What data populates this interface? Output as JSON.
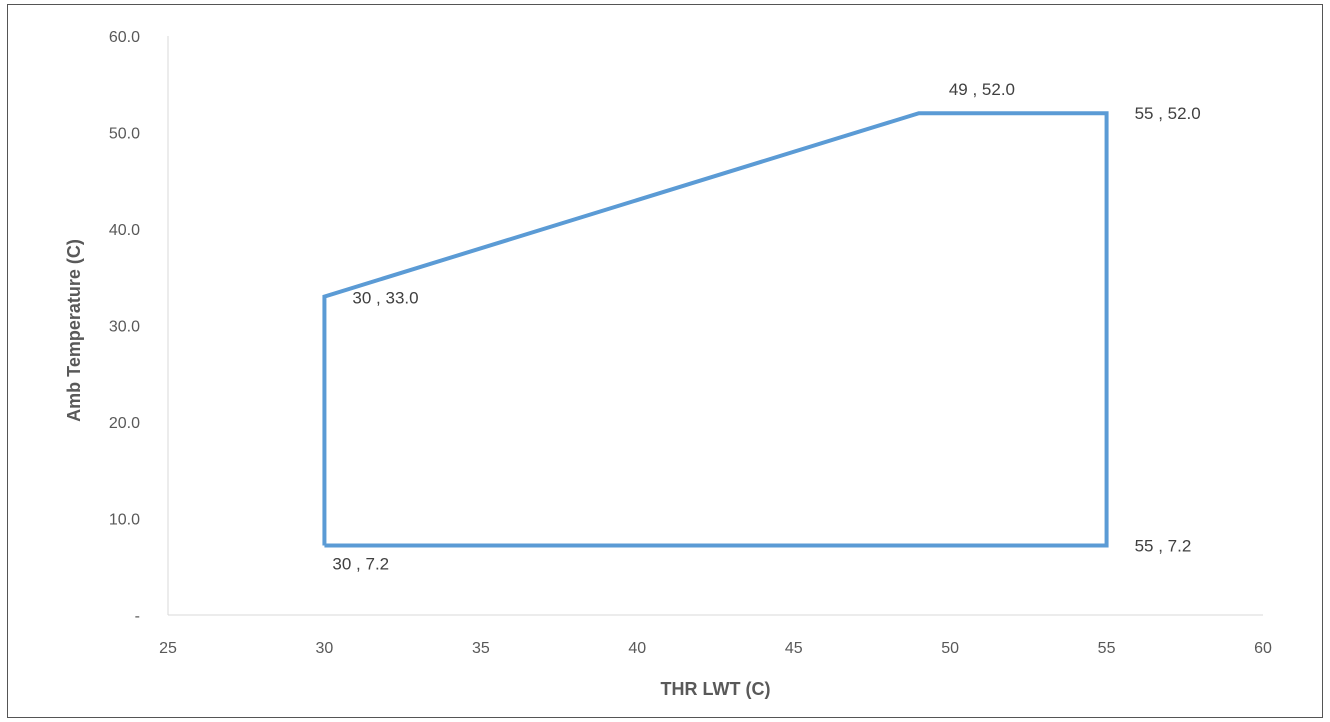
{
  "chart_data": {
    "type": "line",
    "title": "",
    "xlabel": "THR LWT (C)",
    "ylabel": "Amb Temperature (C)",
    "xlim": [
      25,
      60
    ],
    "ylim": [
      0,
      60
    ],
    "x_ticks": [
      "25",
      "30",
      "35",
      "40",
      "45",
      "50",
      "55",
      "60"
    ],
    "y_ticks": [
      "-",
      "10.0",
      "20.0",
      "30.0",
      "40.0",
      "50.0",
      "60.0"
    ],
    "grid": false,
    "legend": "none",
    "series": [
      {
        "color": "#5B9BD5",
        "points": [
          {
            "x": 30,
            "y": 7.2,
            "label": "30 ,  7.2",
            "label_pos": "below"
          },
          {
            "x": 30,
            "y": 33.0,
            "label": "30 ,  33.0",
            "label_pos": "right"
          },
          {
            "x": 49,
            "y": 52.0,
            "label": "49 ,  52.0",
            "label_pos": "above"
          },
          {
            "x": 55,
            "y": 52.0,
            "label": "55 ,  52.0",
            "label_pos": "right"
          },
          {
            "x": 55,
            "y": 7.2,
            "label": "55 ,  7.2",
            "label_pos": "right"
          },
          {
            "x": 30,
            "y": 7.2
          }
        ]
      }
    ]
  }
}
